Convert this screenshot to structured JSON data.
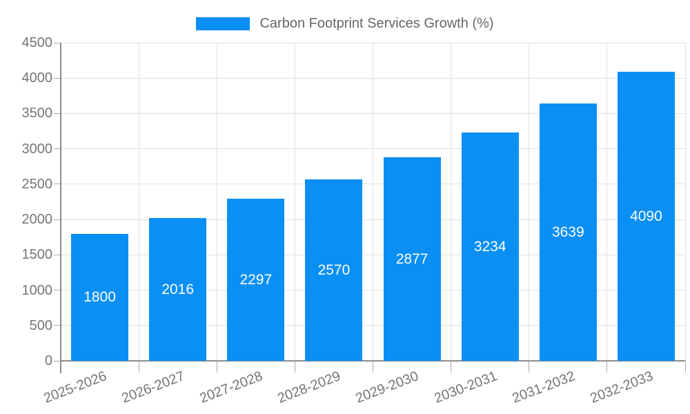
{
  "legend": {
    "label": "Carbon Footprint Services Growth (%)"
  },
  "chart_data": {
    "type": "bar",
    "title": "Carbon Footprint Services Growth (%)",
    "categories": [
      "2025-2026",
      "2026-2027",
      "2027-2028",
      "2028-2029",
      "2029-2030",
      "2030-2031",
      "2031-2032",
      "2032-2033"
    ],
    "values": [
      1800,
      2016,
      2297,
      2570,
      2877,
      3234,
      3639,
      4090
    ],
    "yticks": [
      0,
      500,
      1000,
      1500,
      2000,
      2500,
      3000,
      3500,
      4000,
      4500
    ],
    "ylim": [
      0,
      4500
    ],
    "xlabel": "",
    "ylabel": "",
    "grid": true,
    "legend_position": "top-center",
    "bar_labels_inside": true,
    "x_label_rotation_deg": -21,
    "colors": {
      "bar": "#0A8FF5",
      "grid": "#E0E0E0",
      "axis": "#8C8C8C",
      "tick": "#AAAAAA",
      "tick_label": "#757575",
      "legend_text": "#666666",
      "bar_label": "#FFFFFF",
      "background": "#FFFFFF"
    }
  }
}
